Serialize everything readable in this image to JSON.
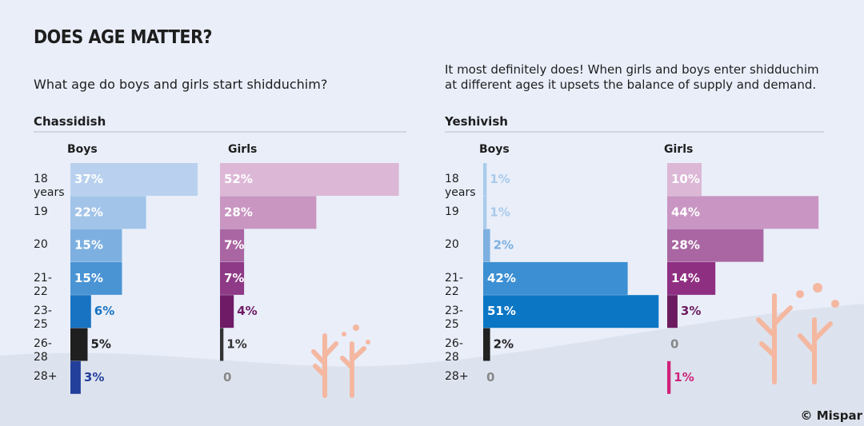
{
  "title": "DOES AGE MATTER?",
  "subtitle": "What age do boys and girls start shidduchim?",
  "description": "It most definitely does! When girls and boys enter shidduchim at different ages it upsets the balance of supply and demand.",
  "credit": "© Mispar",
  "chart_data": [
    {
      "type": "bar",
      "title": "Chassidish",
      "categories": [
        "18 years",
        "19",
        "20",
        "21-22",
        "23-25",
        "26-28",
        "28+"
      ],
      "series": [
        {
          "name": "Boys",
          "values": [
            37,
            22,
            15,
            15,
            6,
            5,
            3
          ],
          "value_labels": [
            "37%",
            "22%",
            "15%",
            "15%",
            "6%",
            "5%",
            "3%"
          ],
          "colors": [
            "#b9d1ee",
            "#a2c4e8",
            "#7db0e0",
            "#4a94d4",
            "#1873c2",
            "#1f1f1f",
            "#233f9c"
          ]
        },
        {
          "name": "Girls",
          "values": [
            52,
            28,
            7,
            7,
            4,
            1,
            0
          ],
          "value_labels": [
            "52%",
            "28%",
            "7%",
            "7%",
            "4%",
            "1%",
            "0"
          ],
          "colors": [
            "#dcb8d6",
            "#c995c1",
            "#a966a3",
            "#8e3a87",
            "#6f1b65",
            "#333333",
            "#999999"
          ]
        }
      ]
    },
    {
      "type": "bar",
      "title": "Yeshivish",
      "categories": [
        "18 years",
        "19",
        "20",
        "21-22",
        "23-25",
        "26-28",
        "28+"
      ],
      "series": [
        {
          "name": "Boys",
          "values": [
            1,
            1,
            2,
            42,
            51,
            2,
            0
          ],
          "value_labels": [
            "1%",
            "1%",
            "2%",
            "42%",
            "51%",
            "2%",
            "0"
          ],
          "colors": [
            "#a8cbec",
            "#a8cbec",
            "#7db0e0",
            "#3c8fd2",
            "#0a76c4",
            "#222222",
            "#999999"
          ]
        },
        {
          "name": "Girls",
          "values": [
            10,
            44,
            28,
            14,
            3,
            0,
            1
          ],
          "value_labels": [
            "10%",
            "44%",
            "28%",
            "14%",
            "3%",
            "0",
            "1%"
          ],
          "colors": [
            "#dcb8d6",
            "#c995c2",
            "#a966a2",
            "#8f2f82",
            "#6b1b5f",
            "#999999",
            "#d0237a"
          ]
        }
      ]
    }
  ]
}
